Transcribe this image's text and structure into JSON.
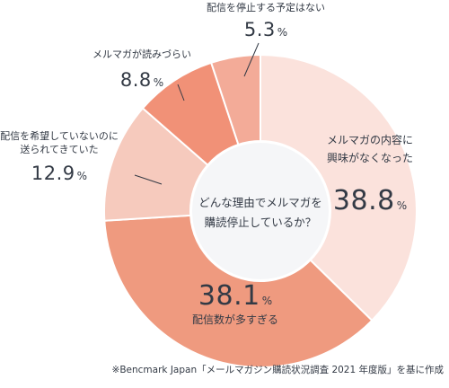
{
  "chart_data": {
    "type": "pie",
    "donut": true,
    "center_text": [
      "どんな理由でメルマガを",
      "購読停止しているか？"
    ],
    "unit": "%",
    "slices": [
      {
        "label": [
          "メルマガの内容に",
          "興味がなくなった"
        ],
        "value": 38.8,
        "color": "#fbe2dc"
      },
      {
        "label": [
          "配信数が多すぎる"
        ],
        "value": 38.1,
        "color": "#ef9a7f"
      },
      {
        "label": [
          "配信を希望していないのに",
          "送られてきていた"
        ],
        "value": 12.9,
        "color": "#f6cabd"
      },
      {
        "label": [
          "メルマガが読みづらい"
        ],
        "value": 8.8,
        "color": "#f19177"
      },
      {
        "label": [
          "配信を停止する予定はない"
        ],
        "value": 5.3,
        "color": "#f3ab98"
      }
    ]
  },
  "source_note": "※Bencmark Japan「メールマガジン購読状況調査 2021 年度版」を基に作成"
}
